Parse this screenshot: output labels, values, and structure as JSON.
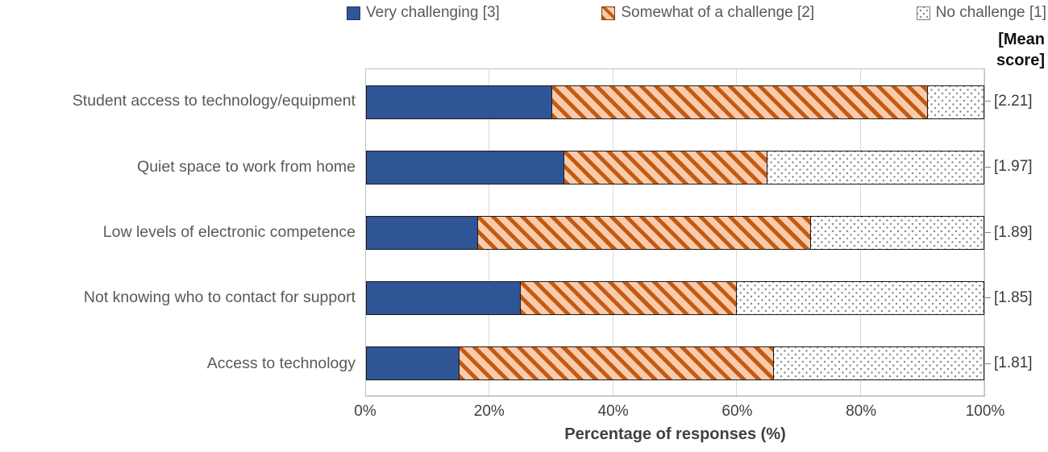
{
  "legend": {
    "items": [
      {
        "label": "Very challenging [3]",
        "swatch": "solid-blue-square"
      },
      {
        "label": "Somewhat of a challenge [2]",
        "swatch": "orange-diagonal-stripes-square"
      },
      {
        "label": "No challenge [1]",
        "swatch": "gray-dotted-square"
      }
    ]
  },
  "mean_header": "[Mean\nscore]",
  "chart_data": {
    "type": "bar",
    "stacked": true,
    "orientation": "horizontal",
    "title": "",
    "xlabel": "Percentage of responses (%)",
    "ylabel": "",
    "xlim": [
      0,
      100
    ],
    "x_ticks": [
      "0%",
      "20%",
      "40%",
      "60%",
      "80%",
      "100%"
    ],
    "grid": "vertical",
    "legend_position": "top",
    "categories": [
      "Student access to technology/equipment",
      "Quiet space to work from home",
      "Low levels of electronic competence",
      "Not knowing who to contact for support",
      "Access to technology"
    ],
    "series": [
      {
        "name": "Very challenging [3]",
        "pattern": "solid",
        "color": "#2F5597",
        "values": [
          30,
          32,
          18,
          25,
          15
        ]
      },
      {
        "name": "Somewhat of a challenge [2]",
        "pattern": "diagonal-stripes",
        "color": "#C55A11",
        "bg": "#F8CBAD",
        "values": [
          61,
          33,
          54,
          35,
          51
        ]
      },
      {
        "name": "No challenge [1]",
        "pattern": "dots",
        "color": "#8C8C8C",
        "bg": "#FFFFFF",
        "values": [
          9,
          35,
          28,
          40,
          34
        ]
      }
    ],
    "mean_scores": [
      "[2.21]",
      "[1.97]",
      "[1.89]",
      "[1.85]",
      "[1.81]"
    ]
  },
  "colors": {
    "very_challenging": "#2F5597",
    "somewhat_stripe": "#C55A11",
    "somewhat_bg": "#F8CBAD",
    "no_challenge_dot": "#8C8C8C",
    "bar_border": "#1a1a1a",
    "gridline": "#D9D9D9",
    "axis_text": "#595959"
  }
}
